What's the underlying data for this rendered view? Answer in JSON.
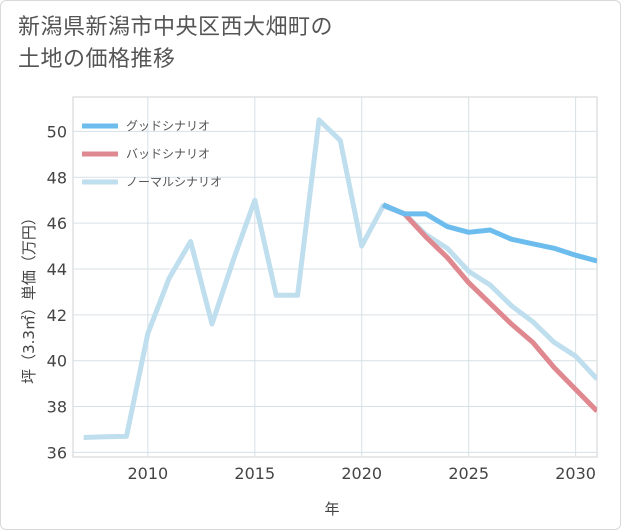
{
  "title": {
    "line1": "新潟県新潟市中央区西大畑町の",
    "line2": "土地の価格推移"
  },
  "chart_data": {
    "type": "line",
    "xlabel": "年",
    "ylabel": "坪（3.3㎡）単価（万円）",
    "xlim": [
      2006.5,
      2031
    ],
    "ylim": [
      35.8,
      51.5
    ],
    "xticks": [
      2010,
      2015,
      2020,
      2025,
      2030
    ],
    "yticks": [
      36,
      38,
      40,
      42,
      44,
      46,
      48,
      50
    ],
    "grid": true,
    "legend_position": "top-left",
    "series": [
      {
        "name": "グッドシナリオ",
        "color": "#6cbcee",
        "x": [
          2021,
          2022,
          2023,
          2024,
          2025,
          2026,
          2027,
          2028,
          2029,
          2030,
          2031
        ],
        "values": [
          46.8,
          46.4,
          46.4,
          45.85,
          45.6,
          45.7,
          45.3,
          45.1,
          44.9,
          44.6,
          44.35
        ]
      },
      {
        "name": "バッドシナリオ",
        "color": "#e0888f",
        "x": [
          2021,
          2022,
          2023,
          2024,
          2025,
          2026,
          2027,
          2028,
          2029,
          2030,
          2031
        ],
        "values": [
          46.8,
          46.4,
          45.4,
          44.5,
          43.4,
          42.5,
          41.6,
          40.8,
          39.7,
          38.75,
          37.8
        ]
      },
      {
        "name": "ノーマルシナリオ",
        "color": "#bfdeee",
        "x": [
          2007,
          2008,
          2009,
          2010,
          2011,
          2012,
          2013,
          2014,
          2015,
          2016,
          2017,
          2018,
          2019,
          2020,
          2021,
          2022,
          2023,
          2024,
          2025,
          2026,
          2027,
          2028,
          2029,
          2030,
          2031
        ],
        "values": [
          36.65,
          36.68,
          36.7,
          41.2,
          43.6,
          45.2,
          41.6,
          44.4,
          47.0,
          42.85,
          42.85,
          50.5,
          49.6,
          45.0,
          46.75,
          46.4,
          45.5,
          44.9,
          43.9,
          43.3,
          42.4,
          41.7,
          40.8,
          40.2,
          39.2
        ]
      }
    ]
  }
}
